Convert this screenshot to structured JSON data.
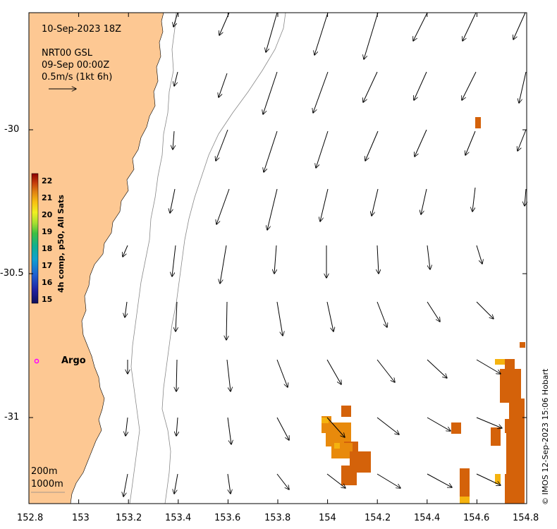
{
  "header": {
    "date": "10-Sep-2023 18Z",
    "product": "NRT00 GSL",
    "product_time": "09-Sep 00:00Z",
    "scale_label": "0.5m/s (1kt 6h)"
  },
  "axes": {
    "x_ticks": [
      "152.8",
      "153",
      "153.2",
      "153.4",
      "153.6",
      "153.8",
      "154",
      "154.2",
      "154.4",
      "154.6",
      "154.8"
    ],
    "y_ticks": [
      "-30",
      "-30.5",
      "-31"
    ],
    "lon_range": [
      152.8,
      154.8
    ],
    "lat_range": [
      -31.3,
      -29.6
    ]
  },
  "colorbar": {
    "title": "4h comp, p50, All Sats",
    "ticks": [
      "22",
      "21",
      "20",
      "19",
      "18",
      "17",
      "16",
      "15"
    ],
    "range": [
      15,
      22
    ]
  },
  "legend": {
    "contour_200": "200m",
    "contour_1000": "1000m"
  },
  "argo": {
    "label": "Argo",
    "lon": 152.83,
    "lat": -30.81
  },
  "credit": "© IMOS 12-Sep-2023 15:06 Hobart",
  "colors": {
    "land": "#fdc893",
    "sst_21_5": "#d4620a",
    "sst_21": "#e88a0c",
    "sst_20_5": "#f5b30f",
    "argo": "#ff00ff"
  }
}
